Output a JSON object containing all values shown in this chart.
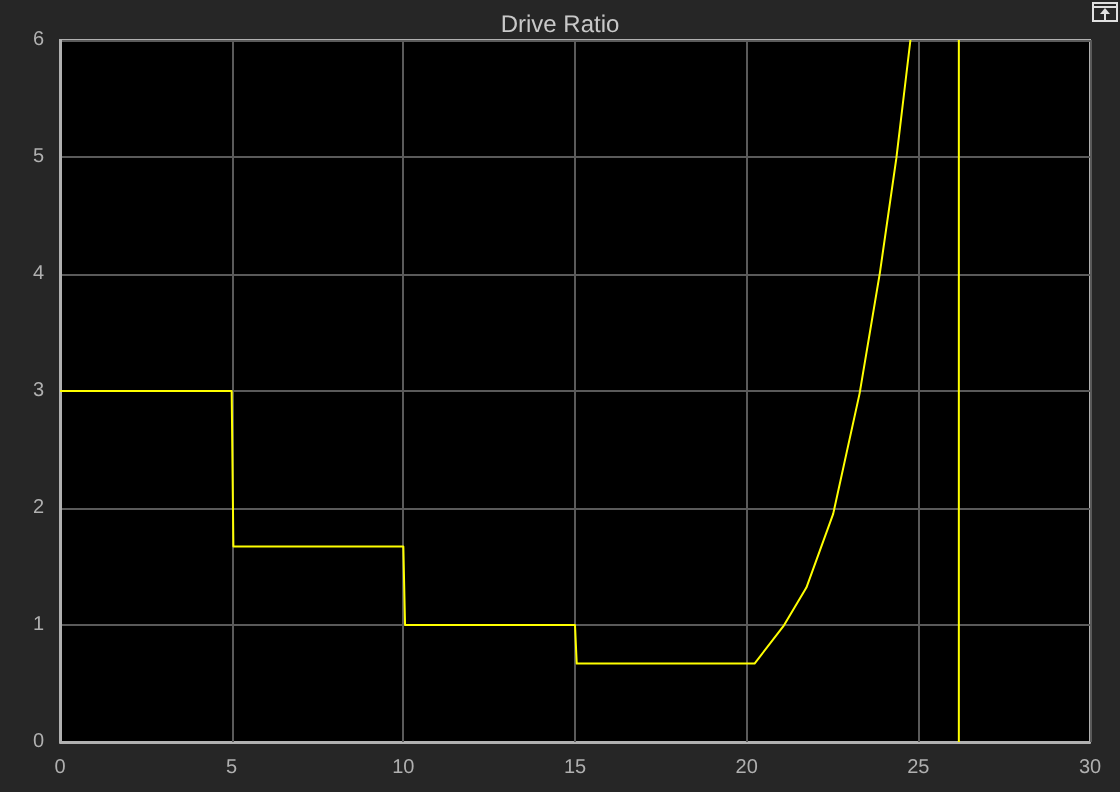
{
  "chart_data": {
    "type": "line",
    "title": "Drive Ratio",
    "x": [
      0,
      5,
      5.05,
      10,
      10.05,
      15,
      15.05,
      20.23,
      21.07,
      21.74,
      22.52,
      23.29,
      23.88,
      24.36,
      24.77,
      null,
      26.18,
      26.18
    ],
    "series": [
      {
        "color": "#ffff00",
        "values": [
          3,
          3,
          1.67,
          1.67,
          1,
          1,
          0.67,
          0.67,
          0.99,
          1.32,
          1.95,
          2.98,
          4.01,
          4.99,
          6,
          null,
          6,
          0
        ]
      }
    ],
    "xlim": [
      0,
      30
    ],
    "xticks": [
      0,
      5,
      10,
      15,
      20,
      25,
      30
    ],
    "ylim": [
      0,
      6
    ],
    "yticks": [
      0,
      1,
      2,
      3,
      4,
      5,
      6
    ],
    "grid": true,
    "marker": "none",
    "line_style": "solid"
  }
}
